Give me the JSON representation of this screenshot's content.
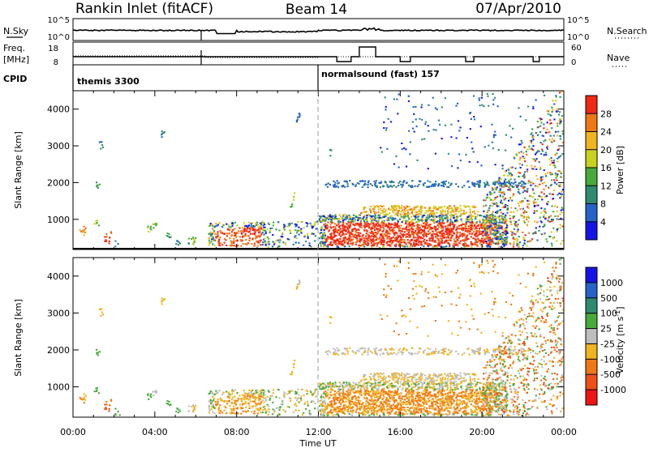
{
  "header": {
    "station": "Rankin Inlet (fitACF)",
    "beam": "Beam 14",
    "date": "07/Apr/2010"
  },
  "top_panels": {
    "nsky_label": "N.Sky",
    "nsky_ticks": [
      "10^5",
      "10^0"
    ],
    "nsearch_label": "N.Search",
    "nsearch_ticks": [
      "10^5",
      "10^0"
    ],
    "freq_label": "Freq.",
    "freq_unit": "[MHz]",
    "freq_ticks": [
      "18",
      "8"
    ],
    "nave_label": "Nave",
    "nave_ticks": [
      "60",
      "0"
    ],
    "cpid_label": "CPID",
    "cpid_modes": [
      "themis 3300",
      "normalsound (fast) 157"
    ]
  },
  "chart_data": [
    {
      "type": "heatmap",
      "name": "power-panel",
      "ylabel": "Slant Range [km]",
      "ylim": [
        180,
        4500
      ],
      "yticks": [
        "1000",
        "2000",
        "3000",
        "4000"
      ],
      "xlim_hours": [
        0,
        24
      ],
      "colorbar": {
        "label": "Power [dB]",
        "ticks": [
          "4",
          "8",
          "12",
          "16",
          "20",
          "24",
          "28"
        ],
        "colors": [
          "#1414e6",
          "#2563c8",
          "#2e8a70",
          "#49aa3c",
          "#c8d21e",
          "#f0b41e",
          "#f07814",
          "#f02814"
        ]
      }
    },
    {
      "type": "heatmap",
      "name": "velocity-panel",
      "ylabel": "Slant Range [km]",
      "ylim": [
        180,
        4500
      ],
      "yticks": [
        "1000",
        "2000",
        "3000",
        "4000"
      ],
      "xlim_hours": [
        0,
        24
      ],
      "colorbar": {
        "label": "Velocity  [m s",
        "label_sup": "-1",
        "label_close": "]",
        "ticks": [
          "1000",
          "500",
          "100",
          "25",
          "-25",
          "-100",
          "-500",
          "-1000"
        ],
        "colors": [
          "#1414e6",
          "#2563c8",
          "#2e8a70",
          "#49aa3c",
          "#bebebe",
          "#f0b41e",
          "#f07814",
          "#f05014",
          "#f01414"
        ]
      }
    }
  ],
  "x_axis": {
    "ticks": [
      "00:00",
      "04:00",
      "08:00",
      "12:00",
      "16:00",
      "20:00",
      "00:00"
    ],
    "label": "Time UT"
  }
}
